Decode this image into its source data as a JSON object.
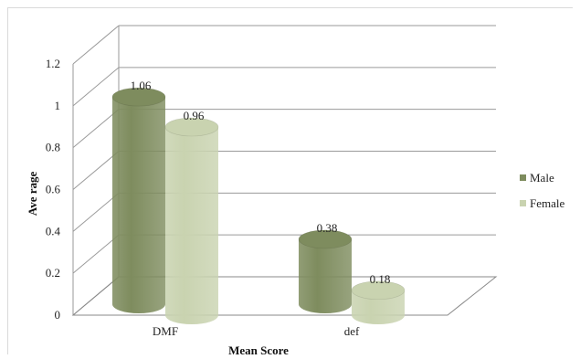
{
  "chart_data": {
    "type": "bar",
    "style": "3d-cylinder",
    "categories": [
      "DMF",
      "def"
    ],
    "series": [
      {
        "name": "Male",
        "values": [
          1.06,
          0.38
        ],
        "color": "#7e8c5e"
      },
      {
        "name": "Female",
        "values": [
          0.96,
          0.18
        ],
        "color": "#c9d3b0"
      }
    ],
    "data_labels": [
      [
        "1.06",
        "0.38"
      ],
      [
        "0.96",
        "0.18"
      ]
    ],
    "title": "",
    "xlabel": "Mean Score",
    "ylabel": "Ave rage",
    "ylim": [
      0,
      1.2
    ],
    "yticks": [
      "0",
      "0.2",
      "0.4",
      "0.6",
      "0.8",
      "1",
      "1.2"
    ],
    "grid": true,
    "legend": "right"
  }
}
